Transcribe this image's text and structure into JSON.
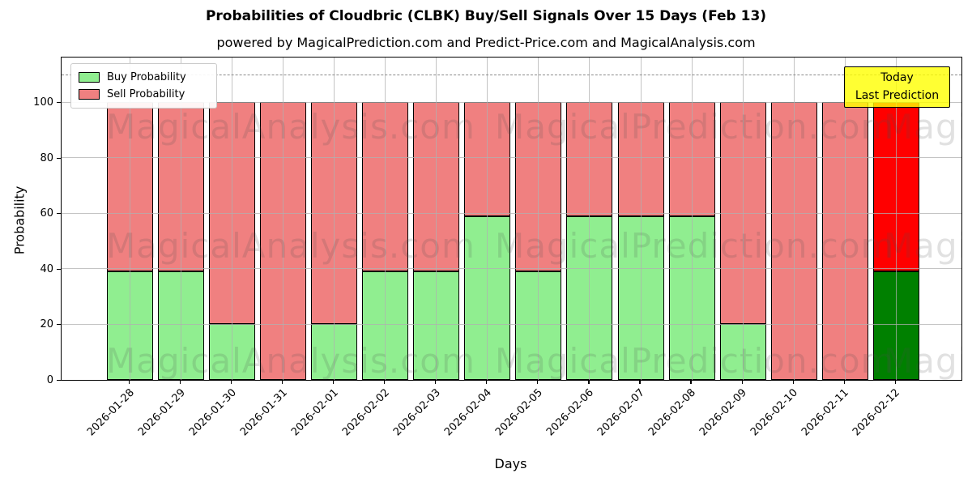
{
  "figure": {
    "title": "Probabilities of Cloudbric (CLBK) Buy/Sell Signals Over 15 Days (Feb 13)",
    "subtitle": "powered by MagicalPrediction.com and Predict-Price.com and MagicalAnalysis.com"
  },
  "axes": {
    "xlabel": "Days",
    "ylabel": "Probability",
    "yticks": [
      0,
      20,
      40,
      60,
      80,
      100
    ]
  },
  "legend": {
    "items": [
      {
        "label": "Buy Probability",
        "color": "#90EE90"
      },
      {
        "label": "Sell Probability",
        "color": "#F08080"
      }
    ]
  },
  "annotation_box": {
    "line1": "Today",
    "line2": "Last Prediction",
    "fill": "#FFFF00",
    "border": "#000000"
  },
  "watermarks": {
    "left_text": "MagicalAnalysis.com",
    "right_text": "MagicalPrediction.com"
  },
  "colors": {
    "bar_edge": "#000000",
    "grid": "#b0b0b0",
    "dashed_guide": "#8a8a8a",
    "watermark": "#787878"
  },
  "chart_data": {
    "type": "bar",
    "stacked": true,
    "title": "Probabilities of Cloudbric (CLBK) Buy/Sell Signals Over 15 Days (Feb 13)",
    "xlabel": "Days",
    "ylabel": "Probability",
    "ylim": [
      0,
      116
    ],
    "dashed_guide_y": 110,
    "grid": true,
    "legend_position": "upper left",
    "categories": [
      "2026-01-28",
      "2026-01-29",
      "2026-01-30",
      "2026-01-31",
      "2026-02-01",
      "2026-02-02",
      "2026-02-03",
      "2026-02-04",
      "2026-02-05",
      "2026-02-06",
      "2026-02-07",
      "2026-02-08",
      "2026-02-09",
      "2026-02-10",
      "2026-02-11",
      "2026-02-12"
    ],
    "series": [
      {
        "name": "Buy Probability",
        "color": "#90EE90",
        "values": [
          39,
          39,
          20,
          0,
          20,
          39,
          39,
          59,
          39,
          59,
          59,
          59,
          20,
          0,
          0,
          39
        ]
      },
      {
        "name": "Sell Probability",
        "color": "#F08080",
        "values": [
          61,
          61,
          80,
          100,
          80,
          61,
          61,
          41,
          61,
          41,
          41,
          41,
          80,
          100,
          100,
          61
        ]
      }
    ],
    "highlight_last_bar": {
      "category": "2026-02-12",
      "buy_color": "#008000",
      "sell_color": "#FF0000",
      "label": "Today / Last Prediction"
    }
  }
}
